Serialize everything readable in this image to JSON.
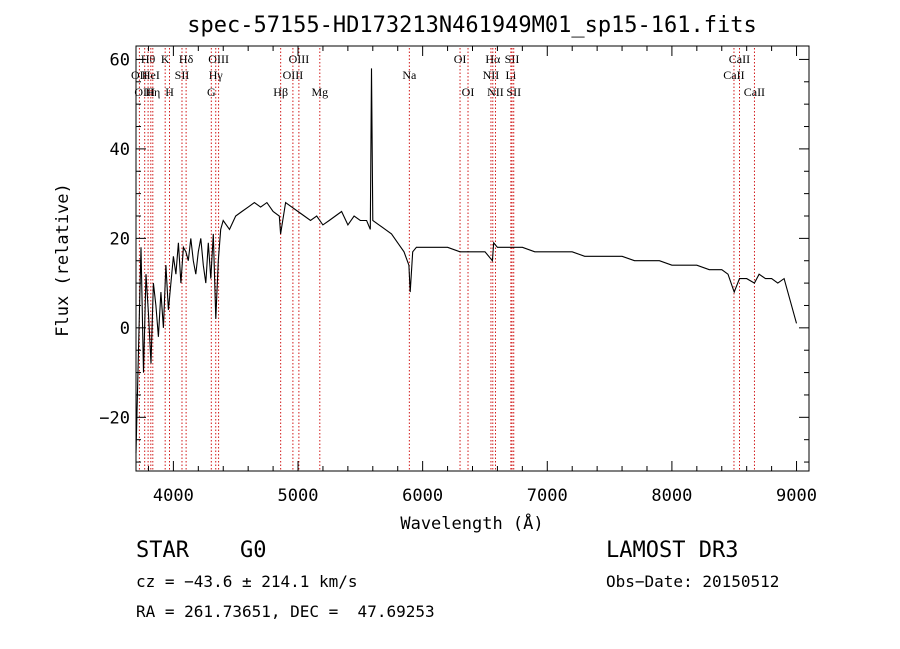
{
  "chart_data": {
    "type": "line",
    "title": "spec-57155-HD173213N461949M01_sp15-161.fits",
    "xlabel": "Wavelength (Å)",
    "ylabel": "Flux (relative)",
    "xlim": [
      3700,
      9100
    ],
    "ylim": [
      -32,
      63
    ],
    "xticks": [
      4000,
      5000,
      6000,
      7000,
      8000,
      9000
    ],
    "yticks": [
      -20,
      0,
      20,
      40,
      60
    ],
    "xtick_labels": [
      "4000",
      "5000",
      "6000",
      "7000",
      "8000",
      "9000"
    ],
    "ytick_labels": [
      "−20",
      "0",
      "20",
      "40",
      "60"
    ],
    "series": [
      {
        "name": "spectrum",
        "x": [
          3700,
          3720,
          3740,
          3760,
          3780,
          3800,
          3820,
          3840,
          3860,
          3880,
          3900,
          3920,
          3940,
          3960,
          3980,
          4000,
          4020,
          4040,
          4060,
          4080,
          4100,
          4120,
          4140,
          4160,
          4180,
          4200,
          4220,
          4240,
          4260,
          4280,
          4300,
          4320,
          4340,
          4360,
          4380,
          4400,
          4450,
          4500,
          4550,
          4600,
          4650,
          4700,
          4750,
          4800,
          4850,
          4860,
          4900,
          4950,
          5000,
          5050,
          5100,
          5150,
          5200,
          5250,
          5300,
          5350,
          5400,
          5450,
          5500,
          5550,
          5580,
          5590,
          5600,
          5650,
          5700,
          5750,
          5800,
          5850,
          5890,
          5900,
          5920,
          5950,
          6000,
          6100,
          6200,
          6300,
          6400,
          6500,
          6560,
          6570,
          6600,
          6700,
          6800,
          6900,
          7000,
          7100,
          7200,
          7300,
          7400,
          7500,
          7600,
          7700,
          7800,
          7900,
          8000,
          8100,
          8200,
          8300,
          8400,
          8450,
          8500,
          8542,
          8600,
          8662,
          8700,
          8750,
          8800,
          8850,
          8900,
          8950,
          9000
        ],
        "values": [
          -28,
          -5,
          18,
          -10,
          12,
          3,
          -8,
          10,
          5,
          -2,
          8,
          0,
          14,
          4,
          10,
          16,
          12,
          19,
          10,
          18,
          17,
          15,
          20,
          15,
          12,
          17,
          20,
          14,
          10,
          19,
          11,
          21,
          2,
          15,
          22,
          24,
          22,
          25,
          26,
          27,
          28,
          27,
          28,
          26,
          25,
          21,
          28,
          27,
          26,
          25,
          24,
          25,
          23,
          24,
          25,
          26,
          23,
          25,
          24,
          24,
          22,
          58,
          24,
          23,
          22,
          21,
          19,
          17,
          14,
          8,
          17,
          18,
          18,
          18,
          18,
          17,
          17,
          17,
          15,
          19,
          18,
          18,
          18,
          17,
          17,
          17,
          17,
          16,
          16,
          16,
          16,
          15,
          15,
          15,
          14,
          14,
          14,
          13,
          13,
          12,
          8,
          11,
          11,
          10,
          12,
          11,
          11,
          10,
          11,
          6,
          1
        ]
      }
    ],
    "line_markers": [
      {
        "label": "Hθ",
        "wavelength": 3797,
        "row": 1
      },
      {
        "label": "OII",
        "wavelength": 3727,
        "row": 2
      },
      {
        "label": "OIII",
        "wavelength": 3770,
        "row": 3
      },
      {
        "label": "HeI",
        "wavelength": 3819,
        "row": 2
      },
      {
        "label": "Hη",
        "wavelength": 3835,
        "row": 3
      },
      {
        "label": "K",
        "wavelength": 3934,
        "row": 1
      },
      {
        "label": "H",
        "wavelength": 3969,
        "row": 3
      },
      {
        "label": "SII",
        "wavelength": 4069,
        "row": 2
      },
      {
        "label": "Hδ",
        "wavelength": 4102,
        "row": 1
      },
      {
        "label": "OIII",
        "wavelength": 4363,
        "row": 1
      },
      {
        "label": "Hγ",
        "wavelength": 4340,
        "row": 2
      },
      {
        "label": "G",
        "wavelength": 4304,
        "row": 3
      },
      {
        "label": "Hβ",
        "wavelength": 4861,
        "row": 3
      },
      {
        "label": "OIII",
        "wavelength": 5007,
        "row": 1
      },
      {
        "label": "OIII",
        "wavelength": 4959,
        "row": 2
      },
      {
        "label": "Mg",
        "wavelength": 5175,
        "row": 3
      },
      {
        "label": "Na",
        "wavelength": 5893,
        "row": 2
      },
      {
        "label": "OI",
        "wavelength": 6300,
        "row": 1
      },
      {
        "label": "OI",
        "wavelength": 6364,
        "row": 3
      },
      {
        "label": "Hα",
        "wavelength": 6563,
        "row": 1
      },
      {
        "label": "NII",
        "wavelength": 6548,
        "row": 2
      },
      {
        "label": "NII",
        "wavelength": 6584,
        "row": 3
      },
      {
        "label": "SII",
        "wavelength": 6717,
        "row": 1
      },
      {
        "label": "Li",
        "wavelength": 6708,
        "row": 2
      },
      {
        "label": "SII",
        "wavelength": 6731,
        "row": 3
      },
      {
        "label": "CaII",
        "wavelength": 8542,
        "row": 1
      },
      {
        "label": "CaII",
        "wavelength": 8498,
        "row": 2
      },
      {
        "label": "CaII",
        "wavelength": 8662,
        "row": 3
      }
    ],
    "grid": false,
    "line_color": "#000000",
    "marker_color": "#cc0000"
  },
  "info": {
    "class_label": "STAR",
    "subclass_label": "G0",
    "redshift_line": "cz = −43.6 ± 214.1 km/s",
    "coords_line": "RA = 261.73651, DEC =  47.69253",
    "survey_label": "LAMOST DR3",
    "obs_date_line": "Obs−Date: 20150512"
  }
}
